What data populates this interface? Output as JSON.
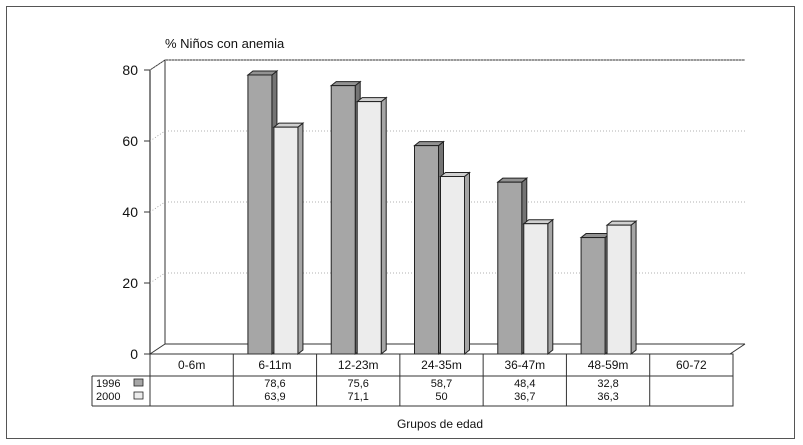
{
  "chart_data": {
    "type": "bar",
    "title": "",
    "ylabel": "% Niños con anemia",
    "xlabel": "Grupos de edad",
    "ylim": [
      0,
      80
    ],
    "yticks": [
      0,
      20,
      40,
      60,
      80
    ],
    "categories": [
      "0-6m",
      "6-11m",
      "12-23m",
      "24-35m",
      "36-47m",
      "48-59m",
      "60-72"
    ],
    "series": [
      {
        "name": "1996",
        "values": [
          null,
          78.6,
          75.6,
          58.7,
          48.4,
          32.8,
          null
        ],
        "labels": [
          "",
          "78,6",
          "75,6",
          "58,7",
          "48,4",
          "32,8",
          ""
        ],
        "color": "#a6a6a6"
      },
      {
        "name": "2000",
        "values": [
          null,
          63.9,
          71.1,
          50,
          36.7,
          36.3,
          null
        ],
        "labels": [
          "",
          "63,9",
          "71,1",
          "50",
          "36,7",
          "36,3",
          ""
        ],
        "color": "#ececec"
      }
    ],
    "grid": true,
    "legend": "data table"
  }
}
